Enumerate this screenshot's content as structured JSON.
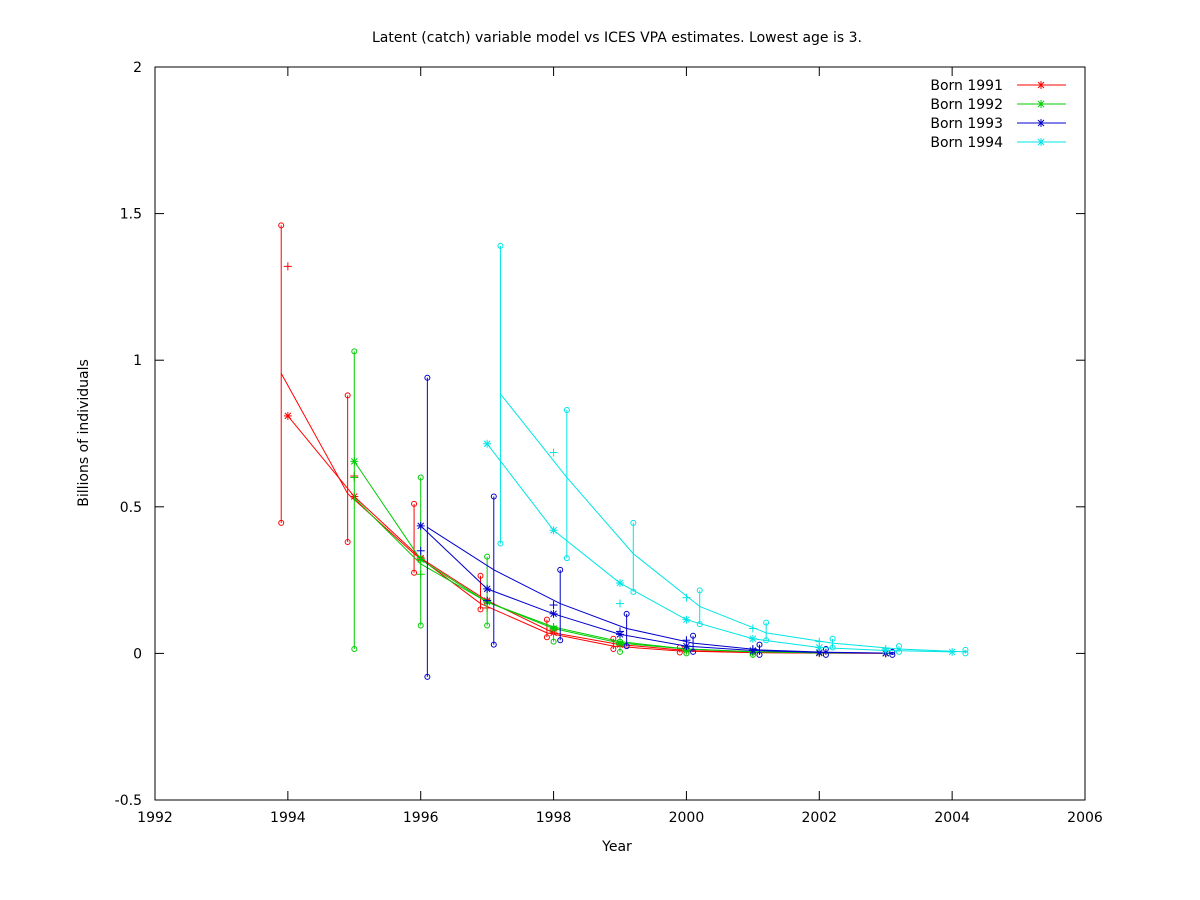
{
  "chart_data": {
    "type": "line",
    "title": "Latent (catch) variable model vs ICES VPA estimates. Lowest age is 3.",
    "xlabel": "Year",
    "ylabel": "Billions of individuals",
    "xlim": [
      1992,
      2006
    ],
    "ylim": [
      -0.5,
      2
    ],
    "xticks": [
      "1992",
      "1994",
      "1996",
      "1998",
      "2000",
      "2002",
      "2004",
      "2006"
    ],
    "yticks": [
      "-0.5",
      "0",
      "0.5",
      "1",
      "1.5",
      "2"
    ],
    "legend_position": "top-right",
    "series": [
      {
        "name": "Born 1991",
        "color": "#ff0000",
        "vpa": {
          "x": [
            1994,
            1995,
            1996,
            1997,
            1998,
            1999,
            2000,
            2001,
            2002,
            2003
          ],
          "y": [
            0.81,
            0.535,
            0.325,
            0.18,
            0.07,
            0.03,
            0.01,
            0.003,
            0.001,
            0.0
          ]
        },
        "model": {
          "x": [
            1993.9,
            1994.9,
            1995.9,
            1996.9,
            1997.9,
            1998.9,
            1999.9,
            2000.9,
            2001.9
          ],
          "y": [
            0.955,
            0.545,
            0.34,
            0.17,
            0.07,
            0.025,
            0.008,
            0.003,
            0.001
          ]
        },
        "observed": {
          "x": [
            1994,
            1995,
            1996,
            1997,
            1998,
            1999,
            2000
          ],
          "y": [
            1.32,
            0.605,
            0.325,
            0.155,
            0.08,
            0.03,
            0.01
          ]
        },
        "intervals": [
          {
            "x": 1993.9,
            "low": 0.445,
            "high": 1.46
          },
          {
            "x": 1994.9,
            "low": 0.38,
            "high": 0.88
          },
          {
            "x": 1995.9,
            "low": 0.275,
            "high": 0.51
          },
          {
            "x": 1996.9,
            "low": 0.15,
            "high": 0.265
          },
          {
            "x": 1997.9,
            "low": 0.055,
            "high": 0.115
          },
          {
            "x": 1998.9,
            "low": 0.015,
            "high": 0.05
          },
          {
            "x": 1999.9,
            "low": 0.003,
            "high": 0.02
          }
        ]
      },
      {
        "name": "Born 1992",
        "color": "#00cc00",
        "vpa": {
          "x": [
            1995,
            1996,
            1997,
            1998,
            1999,
            2000,
            2001,
            2002,
            2003
          ],
          "y": [
            0.655,
            0.32,
            0.175,
            0.085,
            0.035,
            0.015,
            0.005,
            0.002,
            0.001
          ]
        },
        "model": {
          "x": [
            1995,
            1996,
            1997,
            1998,
            1999,
            2000,
            2001,
            2002
          ],
          "y": [
            0.53,
            0.305,
            0.175,
            0.09,
            0.04,
            0.015,
            0.006,
            0.002
          ]
        },
        "observed": {
          "x": [
            1995,
            1996,
            1997,
            1998,
            1999,
            2000,
            2001
          ],
          "y": [
            0.6,
            0.27,
            0.18,
            0.09,
            0.03,
            0.01,
            0.003
          ]
        },
        "intervals": [
          {
            "x": 1995,
            "low": 0.015,
            "high": 1.03
          },
          {
            "x": 1996,
            "low": 0.095,
            "high": 0.6
          },
          {
            "x": 1997,
            "low": 0.095,
            "high": 0.33
          },
          {
            "x": 1998,
            "low": 0.04,
            "high": 0.085
          },
          {
            "x": 1999,
            "low": 0.005,
            "high": 0.04
          },
          {
            "x": 2000,
            "low": 0.0,
            "high": 0.015
          },
          {
            "x": 2001,
            "low": -0.005,
            "high": 0.005
          }
        ]
      },
      {
        "name": "Born 1993",
        "color": "#0000cc",
        "vpa": {
          "x": [
            1996,
            1997,
            1998,
            1999,
            2000,
            2001,
            2002,
            2003
          ],
          "y": [
            0.435,
            0.22,
            0.135,
            0.065,
            0.025,
            0.01,
            0.003,
            0.001
          ]
        },
        "model": {
          "x": [
            1996.1,
            1997.1,
            1998.1,
            1999.1,
            2000.1,
            2001.1,
            2002.1,
            2003.1
          ],
          "y": [
            0.43,
            0.285,
            0.17,
            0.085,
            0.035,
            0.012,
            0.004,
            0.001
          ]
        },
        "observed": {
          "x": [
            1996,
            1997,
            1998,
            1999,
            2000,
            2001
          ],
          "y": [
            0.35,
            0.18,
            0.165,
            0.075,
            0.045,
            0.015
          ]
        },
        "intervals": [
          {
            "x": 1996.1,
            "low": -0.08,
            "high": 0.94
          },
          {
            "x": 1997.1,
            "low": 0.03,
            "high": 0.535
          },
          {
            "x": 1998.1,
            "low": 0.045,
            "high": 0.285
          },
          {
            "x": 1999.1,
            "low": 0.025,
            "high": 0.135
          },
          {
            "x": 2000.1,
            "low": 0.005,
            "high": 0.06
          },
          {
            "x": 2001.1,
            "low": -0.005,
            "high": 0.03
          },
          {
            "x": 2002.1,
            "low": -0.005,
            "high": 0.015
          },
          {
            "x": 2003.1,
            "low": -0.005,
            "high": 0.005
          }
        ]
      },
      {
        "name": "Born 1994",
        "color": "#00e5e5",
        "vpa": {
          "x": [
            1997,
            1998,
            1999,
            2000,
            2001,
            2002,
            2003,
            2004
          ],
          "y": [
            0.715,
            0.42,
            0.24,
            0.115,
            0.05,
            0.02,
            0.01,
            0.005
          ]
        },
        "model": {
          "x": [
            1997.2,
            1998.2,
            1999.2,
            2000.2,
            2001.2,
            2002.2,
            2003.2,
            2004.2
          ],
          "y": [
            0.885,
            0.6,
            0.34,
            0.16,
            0.07,
            0.035,
            0.015,
            0.005
          ]
        },
        "observed": {
          "x": [
            1998,
            1999,
            2000,
            2001,
            2002,
            2003
          ],
          "y": [
            0.685,
            0.17,
            0.19,
            0.085,
            0.04,
            0.015
          ]
        },
        "intervals": [
          {
            "x": 1997.2,
            "low": 0.375,
            "high": 1.39
          },
          {
            "x": 1998.2,
            "low": 0.325,
            "high": 0.83
          },
          {
            "x": 1999.2,
            "low": 0.21,
            "high": 0.445
          },
          {
            "x": 2000.2,
            "low": 0.1,
            "high": 0.215
          },
          {
            "x": 2001.2,
            "low": 0.045,
            "high": 0.105
          },
          {
            "x": 2002.2,
            "low": 0.02,
            "high": 0.05
          },
          {
            "x": 2003.2,
            "low": 0.005,
            "high": 0.025
          },
          {
            "x": 2004.2,
            "low": 0.0,
            "high": 0.012
          }
        ]
      }
    ]
  }
}
